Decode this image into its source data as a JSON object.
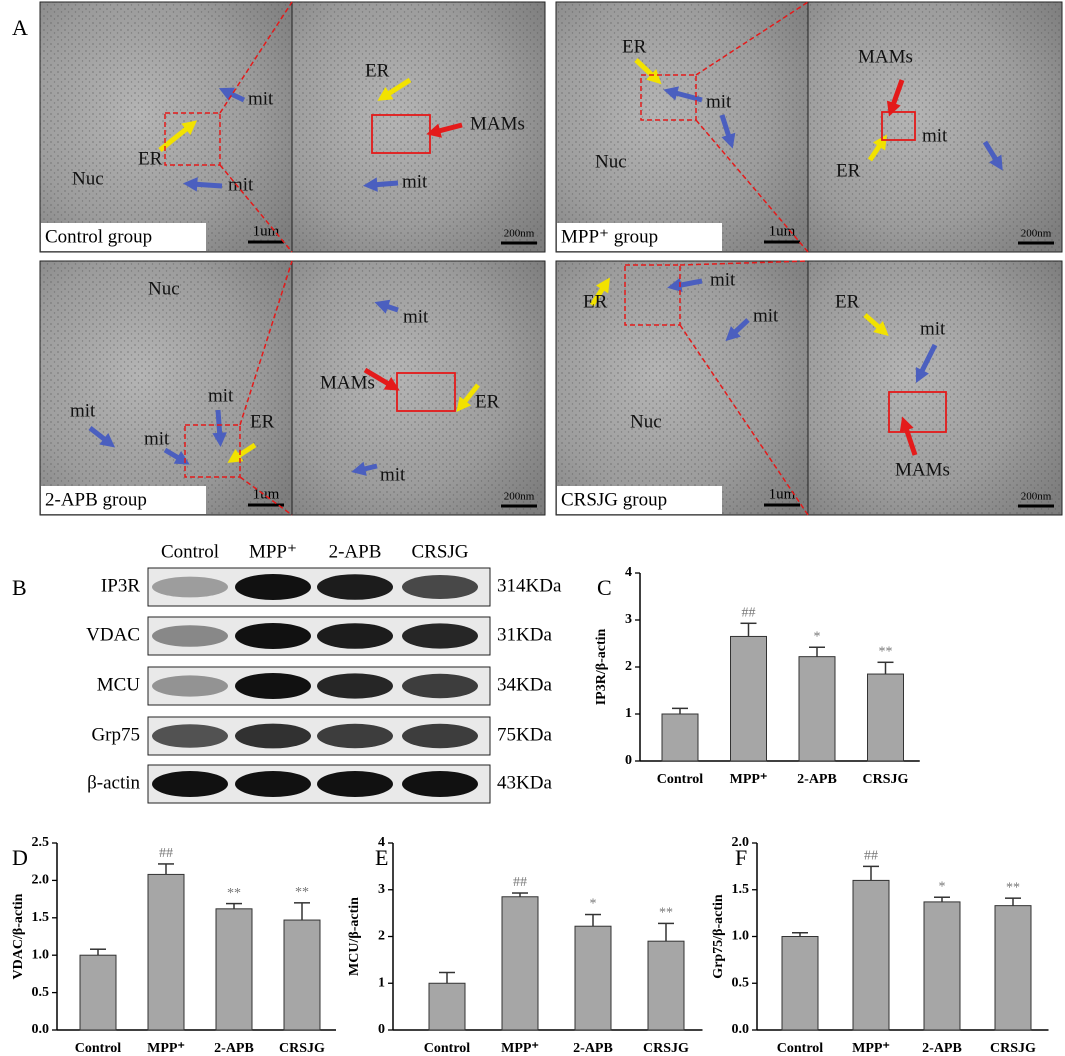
{
  "panel_labels": [
    "A",
    "B",
    "C",
    "D",
    "E",
    "F"
  ],
  "em": {
    "images": [
      {
        "caption": "Control group",
        "scale": "1um",
        "labels": [
          "Nuc",
          "ER",
          "mit",
          "mit"
        ]
      },
      {
        "scale": "200nm",
        "labels": [
          "ER",
          "MAMs",
          "mit"
        ]
      },
      {
        "caption": "MPP⁺ group",
        "scale": "1um",
        "labels": [
          "ER",
          "mit",
          "Nuc"
        ]
      },
      {
        "scale": "200nm",
        "labels": [
          "MAMs",
          "mit",
          "ER"
        ]
      },
      {
        "caption": "2-APB group",
        "scale": "1um",
        "labels": [
          "Nuc",
          "mit",
          "ER",
          "mit",
          "mit"
        ]
      },
      {
        "scale": "200nm",
        "labels": [
          "mit",
          "MAMs",
          "ER",
          "mit"
        ]
      },
      {
        "caption": "CRSJG group",
        "scale": "1um",
        "labels": [
          "mit",
          "ER",
          "mit",
          "Nuc"
        ]
      },
      {
        "scale": "200nm",
        "labels": [
          "ER",
          "mit",
          "MAMs"
        ]
      }
    ]
  },
  "blot": {
    "columns": [
      "Control",
      "MPP⁺",
      "2-APB",
      "CRSJG"
    ],
    "rows": [
      {
        "name": "IP3R",
        "size": "314KDa"
      },
      {
        "name": "VDAC",
        "size": "31KDa"
      },
      {
        "name": "MCU",
        "size": "34KDa"
      },
      {
        "name": "Grp75",
        "size": "75KDa"
      },
      {
        "name": "β-actin",
        "size": "43KDa"
      }
    ]
  },
  "chart_data": [
    {
      "type": "bar",
      "ylabel": "IP3R/β-actin",
      "categories": [
        "Control",
        "MPP⁺",
        "2-APB",
        "CRSJG"
      ],
      "values": [
        1.0,
        2.65,
        2.22,
        1.85
      ],
      "errors": [
        0.12,
        0.28,
        0.2,
        0.25
      ],
      "significance": [
        null,
        "##",
        "*",
        "**"
      ],
      "color": "#a6a6a6",
      "ylim": [
        0,
        4
      ],
      "yticks": [
        0,
        1,
        2,
        3,
        4
      ]
    },
    {
      "type": "bar",
      "ylabel": "VDAC/β-actin",
      "categories": [
        "Control",
        "MPP⁺",
        "2-APB",
        "CRSJG"
      ],
      "values": [
        1.0,
        2.08,
        1.62,
        1.47
      ],
      "errors": [
        0.08,
        0.14,
        0.07,
        0.23
      ],
      "significance": [
        null,
        "##",
        "**",
        "**"
      ],
      "color": "#a6a6a6",
      "ylim": [
        0,
        2.5
      ],
      "yticks": [
        {
          "value": 0,
          "label": "0.0"
        },
        0.5,
        {
          "value": 1,
          "label": "1.0"
        },
        1.5,
        {
          "value": 2,
          "label": "2.0"
        },
        2.5
      ]
    },
    {
      "type": "bar",
      "ylabel": "MCU/β-actin",
      "categories": [
        "Control",
        "MPP⁺",
        "2-APB",
        "CRSJG"
      ],
      "values": [
        1.0,
        2.85,
        2.22,
        1.9
      ],
      "errors": [
        0.23,
        0.08,
        0.25,
        0.38
      ],
      "significance": [
        null,
        "##",
        "*",
        "**"
      ],
      "color": "#a6a6a6",
      "ylim": [
        0,
        4
      ],
      "yticks": [
        0,
        1,
        2,
        3,
        4
      ]
    },
    {
      "type": "bar",
      "ylabel": "Grp75/β-actin",
      "categories": [
        "Control",
        "MPP⁺",
        "2-APB",
        "CRSJG"
      ],
      "values": [
        1.0,
        1.6,
        1.37,
        1.33
      ],
      "errors": [
        0.04,
        0.15,
        0.05,
        0.08
      ],
      "significance": [
        null,
        "##",
        "*",
        "**"
      ],
      "color": "#a6a6a6",
      "ylim": [
        0,
        2.0
      ],
      "yticks": [
        {
          "value": 0,
          "label": "0.0"
        },
        0.5,
        {
          "value": 1,
          "label": "1.0"
        },
        1.5,
        {
          "value": 2,
          "label": "2.0"
        }
      ]
    }
  ]
}
